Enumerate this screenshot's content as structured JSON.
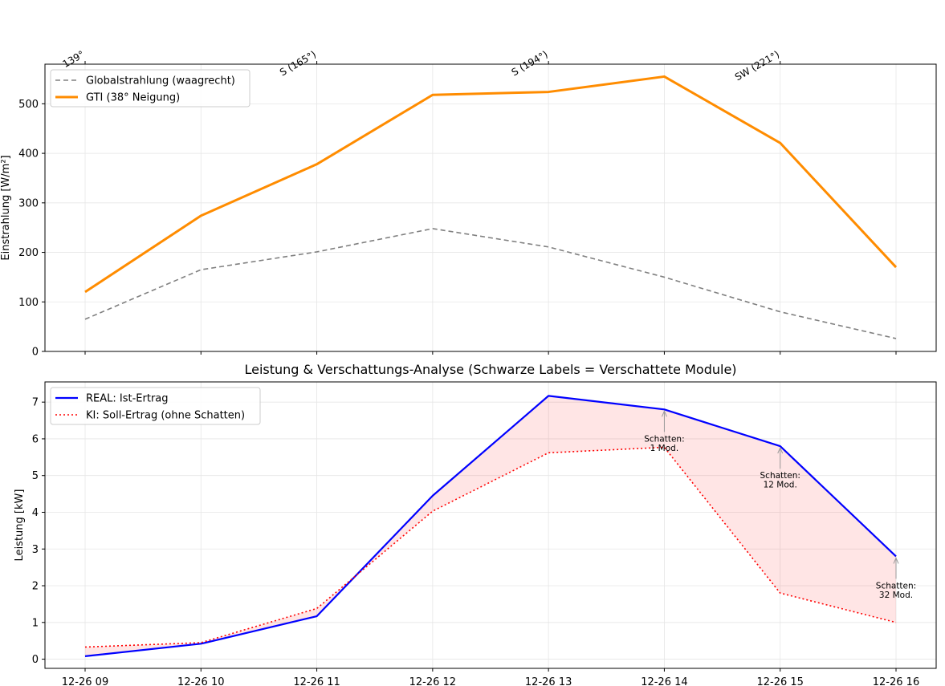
{
  "chart_data": [
    {
      "type": "line",
      "categories": [
        "12-26 09",
        "12-26 10",
        "12-26 11",
        "12-26 12",
        "12-26 13",
        "12-26 14",
        "12-26 15",
        "12-26 16"
      ],
      "ylabel": "Einstrahlung [W/m²]",
      "ylim": [
        0,
        580
      ],
      "yticks": [
        0,
        100,
        200,
        300,
        400,
        500
      ],
      "grid": true,
      "legend": "top-left",
      "top_axis_ticks": [
        {
          "at": "12-26 09",
          "label": "139°"
        },
        {
          "at": "12-26 11",
          "label": "S (165°)"
        },
        {
          "at": "12-26 13",
          "label": "S (194°)"
        },
        {
          "at": "12-26 15",
          "label": "SW (221°)"
        }
      ],
      "series": [
        {
          "name": "Globalstrahlung (waagrecht)",
          "color": "#808080",
          "style": "dashed",
          "values": [
            65,
            165,
            201,
            248,
            211,
            150,
            80,
            26
          ]
        },
        {
          "name": "GTI (38° Neigung)",
          "color": "#ff8c00",
          "style": "solid",
          "values": [
            120,
            274,
            378,
            518,
            524,
            555,
            421,
            170
          ]
        }
      ]
    },
    {
      "type": "line",
      "title": "Leistung & Verschattungs-Analyse (Schwarze Labels = Verschattete Module)",
      "categories": [
        "12-26 09",
        "12-26 10",
        "12-26 11",
        "12-26 12",
        "12-26 13",
        "12-26 14",
        "12-26 15",
        "12-26 16"
      ],
      "ylabel": "Leistung [kW]",
      "ylim": [
        -0.25,
        7.55
      ],
      "yticks": [
        0,
        1,
        2,
        3,
        4,
        5,
        6,
        7
      ],
      "grid": true,
      "legend": "top-left",
      "series": [
        {
          "name": "REAL: Ist-Ertrag",
          "color": "#0000ff",
          "style": "solid",
          "values": [
            0.08,
            0.42,
            1.17,
            4.45,
            7.17,
            6.8,
            5.8,
            2.8
          ]
        },
        {
          "name": "KI: Soll-Ertrag (ohne Schatten)",
          "color": "#ff0000",
          "style": "dotted",
          "values": [
            0.33,
            0.45,
            1.38,
            4.03,
            5.62,
            5.77,
            1.8,
            1.0
          ]
        }
      ],
      "annotations": [
        {
          "at": "12-26 14",
          "y": 6.8,
          "lines": [
            "Schatten:",
            "1 Mod."
          ]
        },
        {
          "at": "12-26 15",
          "y": 5.8,
          "lines": [
            "Schatten:",
            "12 Mod."
          ]
        },
        {
          "at": "12-26 16",
          "y": 2.8,
          "lines": [
            "Schatten:",
            "32 Mod."
          ]
        }
      ]
    }
  ]
}
